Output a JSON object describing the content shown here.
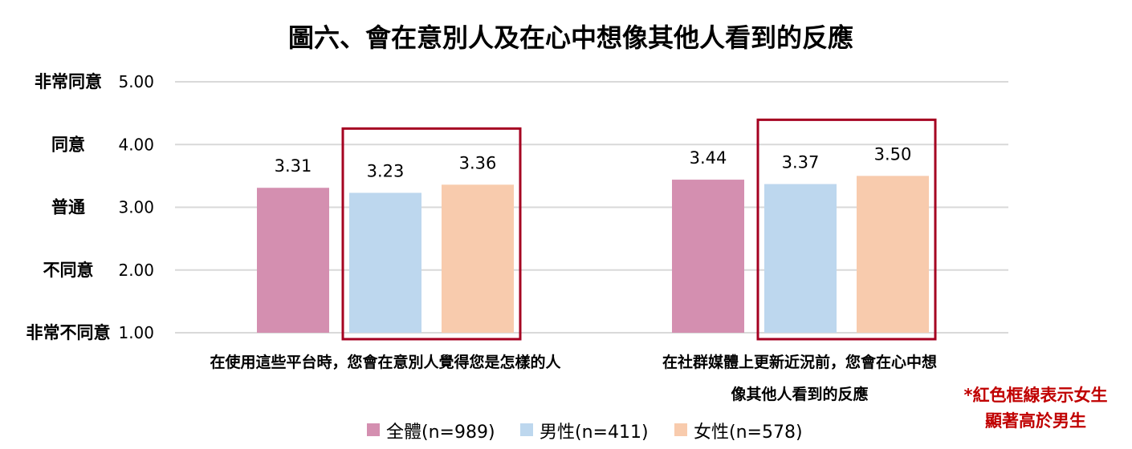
{
  "chart_data": {
    "type": "bar",
    "title": "圖六、會在意別人及在心中想像其他人看到的反應",
    "categories": [
      [
        "在使用這些平台時，您會在意別人覺得您是怎樣的人"
      ],
      [
        "在社群媒體上更新近況前，您會在心中想",
        "像其他人看到的反應"
      ]
    ],
    "series": [
      {
        "name": "全體(n=989)",
        "color": "#d48fb0",
        "values": [
          3.31,
          3.44
        ]
      },
      {
        "name": "男性(n=411)",
        "color": "#bdd7ee",
        "values": [
          3.23,
          3.37
        ]
      },
      {
        "name": "女性(n=578)",
        "color": "#f8cbad",
        "values": [
          3.36,
          3.5
        ]
      }
    ],
    "ylim": [
      1,
      5
    ],
    "yticks": [
      5.0,
      4.0,
      3.0,
      2.0,
      1.0
    ],
    "ytick_labels": [
      "5.00",
      "4.00",
      "3.00",
      "2.00",
      "1.00"
    ],
    "ylabels": [
      "非常同意",
      "同意",
      "普通",
      "不同意",
      "非常不同意"
    ],
    "grid": true,
    "legend_position": "bottom",
    "highlight_color": "#a50021",
    "highlight_series": [
      "男性(n=411)",
      "女性(n=578)"
    ],
    "annotation": [
      "*紅色框線表示女生",
      "顯著高於男生"
    ],
    "annotation_color": "#c00000"
  }
}
